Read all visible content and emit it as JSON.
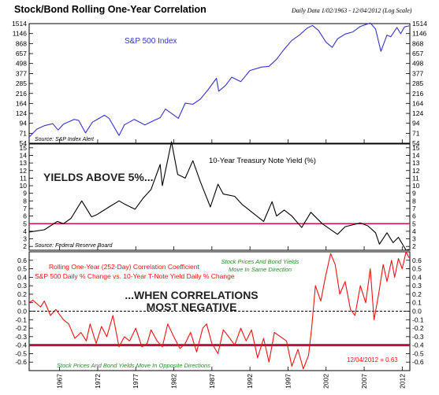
{
  "header": {
    "title": "Stock/Bond Rolling One-Year Correlation",
    "subtitle": "Daily Data 1/02/1963 - 12/04/2012 (Log Scale)"
  },
  "chart_data": [
    {
      "type": "line",
      "panel": "top",
      "series": [
        {
          "name": "S&P 500 Index",
          "color": "#3333cc",
          "x": [
            1963.0,
            1964.0,
            1965.0,
            1966.1,
            1966.8,
            1967.5,
            1968.9,
            1969.5,
            1970.4,
            1971.3,
            1972.9,
            1973.5,
            1974.8,
            1975.5,
            1976.8,
            1978.2,
            1979.5,
            1980.2,
            1980.9,
            1982.6,
            1983.5,
            1984.5,
            1985.5,
            1986.5,
            1987.6,
            1987.9,
            1988.8,
            1989.6,
            1990.8,
            1992.0,
            1993.5,
            1994.5,
            1995.5,
            1996.5,
            1997.5,
            1998.5,
            1999.5,
            2000.2,
            2001.0,
            2002.0,
            2002.8,
            2003.5,
            2004.5,
            2005.5,
            2006.5,
            2007.8,
            2008.5,
            2009.2,
            2010.0,
            2010.5,
            2011.3,
            2011.8,
            2012.3,
            2012.9
          ],
          "y": [
            64,
            80,
            88,
            93,
            78,
            92,
            105,
            102,
            72,
            97,
            118,
            108,
            67,
            90,
            105,
            90,
            103,
            110,
            140,
            108,
            165,
            160,
            185,
            240,
            330,
            230,
            270,
            340,
            300,
            410,
            450,
            460,
            560,
            740,
            950,
            1100,
            1330,
            1440,
            1250,
            900,
            780,
            990,
            1130,
            1200,
            1400,
            1540,
            1300,
            700,
            1100,
            1050,
            1360,
            1140,
            1380,
            1420
          ]
        }
      ],
      "ytick_labels": [
        "1514",
        "1146",
        "868",
        "657",
        "498",
        "377",
        "285",
        "216",
        "164",
        "124",
        "94",
        "71",
        "54"
      ],
      "scale": "log",
      "ylim": [
        54,
        1514
      ],
      "annotations": [
        "S&P 500 Index",
        "Source: S&P Index Alert"
      ]
    },
    {
      "type": "line",
      "panel": "middle",
      "series": [
        {
          "name": "10-Year Treasury Note Yield (%)",
          "color": "#000000",
          "x": [
            1963.0,
            1965.0,
            1966.7,
            1967.5,
            1968.5,
            1969.9,
            1971.2,
            1971.9,
            1973.5,
            1974.8,
            1975.5,
            1976.9,
            1978.0,
            1979.0,
            1980.2,
            1980.5,
            1981.7,
            1982.5,
            1983.5,
            1984.5,
            1985.5,
            1986.8,
            1987.8,
            1988.5,
            1990.0,
            1991.0,
            1993.8,
            1994.9,
            1995.5,
            1996.5,
            1997.5,
            1998.8,
            2000.0,
            2001.5,
            2003.5,
            2004.5,
            2006.5,
            2007.5,
            2008.5,
            2009.0,
            2010.0,
            2010.8,
            2011.5,
            2012.5,
            2012.9
          ],
          "y": [
            3.9,
            4.2,
            5.3,
            5.0,
            5.7,
            8.0,
            5.9,
            6.2,
            7.2,
            8.0,
            7.6,
            6.9,
            8.4,
            9.5,
            12.8,
            10.0,
            15.8,
            11.5,
            11.0,
            13.3,
            10.5,
            7.2,
            10.2,
            8.9,
            8.6,
            7.5,
            5.3,
            7.9,
            6.0,
            6.8,
            6.0,
            4.5,
            6.5,
            5.0,
            3.6,
            4.6,
            5.1,
            4.7,
            3.8,
            2.3,
            3.8,
            2.5,
            3.2,
            1.5,
            1.6
          ]
        }
      ],
      "ytick_labels": [
        "15",
        "14",
        "13",
        "12",
        "11",
        "10",
        "9",
        "8",
        "7",
        "6",
        "5",
        "4",
        "3",
        "2"
      ],
      "ylim": [
        1.5,
        15.5
      ],
      "threshold_line": 5,
      "annotations": [
        "YIELDS ABOVE 5%...",
        "10-Year Treasury Note Yield (%)",
        "Source: Federal Reserve Board"
      ]
    },
    {
      "type": "line",
      "panel": "bottom",
      "series": [
        {
          "name": "Rolling One-Year (252-Day) Correlation Coefficient",
          "color": "#ee1111",
          "x": [
            1963.0,
            1963.5,
            1964.5,
            1965.0,
            1965.8,
            1966.5,
            1967.5,
            1968.2,
            1969.0,
            1969.8,
            1970.5,
            1971.0,
            1971.8,
            1972.5,
            1973.2,
            1974.0,
            1974.8,
            1975.5,
            1976.2,
            1977.0,
            1977.8,
            1978.5,
            1979.0,
            1979.8,
            1980.5,
            1981.2,
            1982.0,
            1982.8,
            1983.5,
            1984.2,
            1985.0,
            1985.8,
            1986.3,
            1987.0,
            1987.8,
            1988.5,
            1989.2,
            1990.0,
            1990.8,
            1991.5,
            1992.2,
            1993.0,
            1993.8,
            1994.5,
            1995.2,
            1996.0,
            1996.8,
            1997.5,
            1998.3,
            1999.0,
            1999.7,
            2000.1,
            2000.6,
            2001.3,
            2001.9,
            2002.6,
            2003.2,
            2003.8,
            2004.5,
            2005.2,
            2005.8,
            2006.5,
            2007.2,
            2007.8,
            2008.3,
            2008.9,
            2009.5,
            2010.0,
            2010.6,
            2011.0,
            2011.5,
            2012.0,
            2012.5,
            2012.9
          ],
          "y": [
            0.1,
            0.13,
            0.05,
            0.12,
            -0.05,
            0.02,
            -0.1,
            -0.15,
            -0.32,
            -0.25,
            -0.35,
            -0.15,
            -0.38,
            -0.18,
            -0.3,
            -0.05,
            -0.42,
            -0.3,
            -0.35,
            -0.2,
            -0.42,
            -0.38,
            -0.22,
            -0.35,
            -0.42,
            -0.15,
            -0.3,
            -0.44,
            -0.38,
            -0.25,
            -0.48,
            -0.2,
            -0.15,
            -0.38,
            -0.5,
            -0.22,
            -0.3,
            -0.4,
            -0.2,
            -0.35,
            -0.22,
            -0.55,
            -0.32,
            -0.6,
            -0.25,
            -0.3,
            -0.35,
            -0.65,
            -0.45,
            -0.68,
            -0.52,
            -0.2,
            0.3,
            0.12,
            0.4,
            0.68,
            0.55,
            0.2,
            0.35,
            0.02,
            -0.05,
            0.3,
            0.1,
            0.5,
            -0.1,
            0.2,
            0.55,
            0.35,
            0.6,
            0.4,
            0.62,
            0.5,
            0.7,
            0.63
          ]
        }
      ],
      "ytick_labels": [
        "0.6",
        "0.5",
        "0.4",
        "0.3",
        "0.2",
        "0.1",
        "0.0",
        "-0.1",
        "-0.2",
        "-0.3",
        "-0.4",
        "-0.5",
        "-0.6"
      ],
      "ylim": [
        -0.7,
        0.7
      ],
      "threshold_line": -0.4,
      "annotations": [
        "Rolling One-Year (252-Day) Correlation Coefficient",
        "S&P 500 Daily % Change vs. 10-Year T-Note Yield Daily % Change",
        "Stock Prices And Bond Yields",
        "Move In Same Direction",
        "...WHEN CORRELATIONS",
        "MOST NEGATIVE",
        "Stock Prices And Bond Yields Move In Opposite Directions",
        "12/04/2012 = 0.63"
      ]
    }
  ],
  "x_axis": {
    "xlim": [
      1963,
      2013
    ],
    "tick_labels": [
      "1967",
      "1972",
      "1977",
      "1982",
      "1987",
      "1992",
      "1997",
      "2002",
      "2007",
      "2012"
    ],
    "tick_values": [
      1967,
      1972,
      1977,
      1982,
      1987,
      1992,
      1997,
      2002,
      2007,
      2012
    ]
  }
}
